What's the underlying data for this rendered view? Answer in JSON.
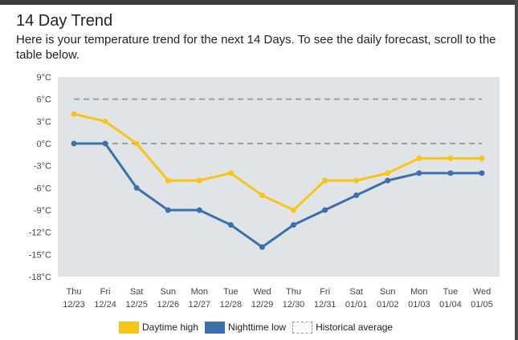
{
  "page": {
    "title": "14 Day Trend",
    "subtitle": "Here is your temperature trend for the next 14 Days. To see the daily forecast, scroll to the table below."
  },
  "colors": {
    "daytime_high": "#f5c518",
    "nighttime_low": "#3b70ad",
    "historical_average": "#9e9e9e",
    "plot_background": "#e1e4e7"
  },
  "chart_data": {
    "type": "line",
    "title": "",
    "xlabel": "",
    "ylabel": "",
    "ylim": [
      -18,
      9
    ],
    "yticks": [
      9,
      6,
      3,
      0,
      -3,
      -6,
      -9,
      -12,
      -15,
      -18
    ],
    "ytick_labels": [
      "9°C",
      "6°C",
      "3°C",
      "0°C",
      "-3°C",
      "-6°C",
      "-9°C",
      "-12°C",
      "-15°C",
      "-18°C"
    ],
    "categories": [
      {
        "day": "Thu",
        "date": "12/23"
      },
      {
        "day": "Fri",
        "date": "12/24"
      },
      {
        "day": "Sat",
        "date": "12/25"
      },
      {
        "day": "Sun",
        "date": "12/26"
      },
      {
        "day": "Mon",
        "date": "12/27"
      },
      {
        "day": "Tue",
        "date": "12/28"
      },
      {
        "day": "Wed",
        "date": "12/29"
      },
      {
        "day": "Thu",
        "date": "12/30"
      },
      {
        "day": "Fri",
        "date": "12/31"
      },
      {
        "day": "Sat",
        "date": "01/01"
      },
      {
        "day": "Sun",
        "date": "01/02"
      },
      {
        "day": "Mon",
        "date": "01/03"
      },
      {
        "day": "Tue",
        "date": "01/04"
      },
      {
        "day": "Wed",
        "date": "01/05"
      }
    ],
    "series": [
      {
        "name": "Daytime high",
        "values": [
          4,
          3,
          0,
          -5,
          -5,
          -4,
          -7,
          -9,
          -5,
          -5,
          -4,
          -2,
          -2,
          -2
        ]
      },
      {
        "name": "Nighttime low",
        "values": [
          0,
          0,
          -6,
          -9,
          -9,
          -11,
          -14,
          -11,
          -9,
          -7,
          -5,
          -4,
          -4,
          -4
        ]
      }
    ],
    "historical_average": {
      "name": "Historical average",
      "upper": 6,
      "lower": 0
    },
    "grid": false,
    "legend_position": "bottom"
  }
}
